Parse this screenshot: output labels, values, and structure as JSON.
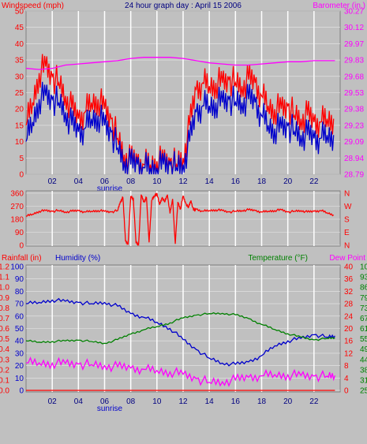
{
  "header": {
    "windspeed_label": "Windspeed (mph)",
    "title": "24 hour graph day : April 15 2006",
    "barometer_label": "Barometer (in.)"
  },
  "mid_header": {
    "rainfall_label": "Rainfall (in)",
    "humidity_label": "Humidity (%)",
    "temperature_label": "Temperature (°F)",
    "dewpoint_label": "Dew Point"
  },
  "sunrise_label": "sunrise",
  "colors": {
    "windspeed": "#ff0000",
    "wind_gust": "#0000cc",
    "barometer": "#ff00ff",
    "wind_direction": "#ff0000",
    "humidity": "#0000cc",
    "temperature": "#008000",
    "dewpoint": "#ff00ff",
    "rainfall": "#ff0000",
    "plot_bg": "#c0c0c0",
    "grid": "#ffffff"
  },
  "chart_data": [
    {
      "type": "line",
      "x_ticks": [
        "02",
        "04",
        "06",
        "08",
        "10",
        "12",
        "14",
        "16",
        "18",
        "20",
        "22"
      ],
      "left_axis": {
        "label": "Windspeed (mph)",
        "ylim": [
          0,
          50
        ],
        "ticks": [
          "0",
          "5",
          "10",
          "15",
          "20",
          "25",
          "30",
          "35",
          "40",
          "45",
          "50"
        ]
      },
      "right_axis": {
        "label": "Barometer (in.)",
        "ylim": [
          28.79,
          30.27
        ],
        "ticks": [
          "28.79",
          "28.94",
          "29.09",
          "29.23",
          "29.38",
          "29.53",
          "29.68",
          "29.83",
          "29.97",
          "30.12",
          "30.27"
        ]
      },
      "series": [
        {
          "name": "Windspeed",
          "axis": "left",
          "color": "#ff0000",
          "x": [
            0,
            0.5,
            1,
            1.5,
            2,
            2.5,
            3,
            3.5,
            4,
            4.5,
            5,
            5.5,
            6,
            6.5,
            7,
            7.5,
            8,
            8.5,
            9,
            9.5,
            10,
            10.5,
            11,
            11.5,
            12,
            12.5,
            13,
            13.5,
            14,
            14.5,
            15,
            15.5,
            16,
            16.5,
            17,
            17.5,
            18,
            18.5,
            19,
            19.5,
            20,
            20.5,
            21,
            21.5,
            22,
            22.5,
            23,
            23.5
          ],
          "y": [
            15,
            22,
            31,
            33,
            30,
            28,
            24,
            20,
            17,
            19,
            22,
            23,
            20,
            17,
            11,
            6,
            4,
            4,
            3,
            3,
            4,
            4,
            4,
            3,
            5,
            15,
            26,
            28,
            27,
            28,
            28,
            29,
            28,
            27,
            29,
            28,
            24,
            21,
            20,
            20,
            21,
            18,
            17,
            18,
            16,
            16,
            17,
            17
          ]
        },
        {
          "name": "Wind Gust",
          "axis": "left",
          "color": "#0000cc",
          "x": [
            0,
            0.5,
            1,
            1.5,
            2,
            2.5,
            3,
            3.5,
            4,
            4.5,
            5,
            5.5,
            6,
            6.5,
            7,
            7.5,
            8,
            8.5,
            9,
            9.5,
            10,
            10.5,
            11,
            11.5,
            12,
            12.5,
            13,
            13.5,
            14,
            14.5,
            15,
            15.5,
            16,
            16.5,
            17,
            17.5,
            18,
            18.5,
            19,
            19.5,
            20,
            20.5,
            21,
            21.5,
            22,
            22.5,
            23,
            23.5
          ],
          "y": [
            10,
            16,
            23,
            24,
            23,
            22,
            19,
            15,
            13,
            14,
            17,
            18,
            15,
            13,
            8,
            4,
            3,
            3,
            2,
            2,
            2,
            3,
            3,
            2,
            3,
            10,
            19,
            21,
            21,
            22,
            22,
            23,
            22,
            22,
            23,
            22,
            18,
            15,
            14,
            14,
            15,
            13,
            12,
            12,
            11,
            11,
            12,
            12
          ]
        },
        {
          "name": "Barometer",
          "axis": "right",
          "color": "#ff00ff",
          "x": [
            0,
            1,
            2,
            3,
            4,
            5,
            6,
            7,
            8,
            9,
            10,
            11,
            12,
            13,
            14,
            15,
            16,
            17,
            18,
            19,
            20,
            21,
            22,
            23,
            23.6
          ],
          "y": [
            29.75,
            29.74,
            29.75,
            29.78,
            29.79,
            29.8,
            29.81,
            29.82,
            29.84,
            29.85,
            29.85,
            29.85,
            29.84,
            29.82,
            29.8,
            29.79,
            29.78,
            29.78,
            29.79,
            29.8,
            29.81,
            29.81,
            29.82,
            29.82,
            29.82
          ]
        }
      ]
    },
    {
      "type": "line",
      "x_ticks": [
        "02",
        "04",
        "06",
        "08",
        "10",
        "12",
        "14",
        "16",
        "18",
        "20",
        "22"
      ],
      "left_axis": {
        "ylim": [
          0,
          360
        ],
        "ticks": [
          "0",
          "90",
          "180",
          "270",
          "360"
        ]
      },
      "right_axis": {
        "ticks": [
          "N",
          "E",
          "S",
          "W",
          "N"
        ]
      },
      "series": [
        {
          "name": "Wind Direction",
          "color": "#ff0000",
          "x": [
            0,
            0.5,
            1,
            1.5,
            2,
            2.5,
            3,
            3.5,
            4,
            4.5,
            5,
            5.5,
            6,
            6.5,
            7,
            7.2,
            7.4,
            7.6,
            7.8,
            8,
            8.2,
            8.4,
            8.6,
            8.8,
            9,
            9.2,
            9.4,
            9.6,
            9.8,
            10,
            10.2,
            10.4,
            10.6,
            10.8,
            11,
            11.2,
            11.4,
            11.6,
            11.8,
            12,
            12.2,
            12.4,
            12.6,
            12.8,
            13,
            13.5,
            14,
            14.5,
            15,
            15.5,
            16,
            16.5,
            17,
            17.5,
            18,
            18.5,
            19,
            19.5,
            20,
            20.5,
            21,
            21.5,
            22,
            22.5,
            23,
            23.5
          ],
          "y": [
            200,
            215,
            235,
            240,
            235,
            240,
            230,
            235,
            240,
            230,
            235,
            240,
            235,
            230,
            240,
            300,
            330,
            30,
            10,
            340,
            320,
            20,
            5,
            350,
            300,
            330,
            20,
            310,
            340,
            360,
            280,
            330,
            300,
            350,
            220,
            320,
            10,
            300,
            250,
            340,
            290,
            260,
            310,
            240,
            250,
            235,
            240,
            245,
            240,
            230,
            235,
            240,
            245,
            240,
            230,
            235,
            240,
            245,
            230,
            235,
            240,
            230,
            235,
            240,
            225,
            210
          ]
        }
      ]
    },
    {
      "type": "line",
      "x_ticks": [
        "02",
        "04",
        "06",
        "08",
        "10",
        "12",
        "14",
        "16",
        "18",
        "20",
        "22"
      ],
      "axes": [
        {
          "label": "Rainfall (in)",
          "side": "left",
          "ticks": [
            "0.0",
            "0.1",
            "0.2",
            "0.3",
            "0.4",
            "0.5",
            "0.6",
            "0.7",
            "0.8",
            "0.9",
            "1.0",
            "1.1",
            "1.2"
          ]
        },
        {
          "label": "Humidity (%)",
          "side": "left",
          "ylim": [
            0,
            100
          ],
          "ticks": [
            "0",
            "10",
            "20",
            "30",
            "40",
            "50",
            "60",
            "70",
            "80",
            "90",
            "100"
          ]
        },
        {
          "label": "Temperature (°F)",
          "side": "right",
          "ylim": [
            0,
            40
          ],
          "ticks": [
            "0",
            "4",
            "8",
            "12",
            "16",
            "20",
            "24",
            "28",
            "32",
            "36",
            "40"
          ]
        },
        {
          "label": "Dew Point",
          "side": "right",
          "ticks": [
            "25",
            "31",
            "38",
            "44",
            "49",
            "55",
            "61",
            "67",
            "73",
            "79",
            "86",
            "93",
            "100"
          ]
        }
      ],
      "series": [
        {
          "name": "Humidity",
          "axis": "Humidity (%)",
          "color": "#0000cc",
          "x": [
            0,
            1,
            2,
            3,
            4,
            5,
            6,
            7,
            8,
            9,
            10,
            11,
            12,
            13,
            14,
            15,
            16,
            17,
            18,
            19,
            20,
            21,
            22,
            23,
            23.6
          ],
          "y": [
            70,
            71,
            73,
            72,
            71,
            70,
            71,
            68,
            62,
            59,
            55,
            50,
            41,
            33,
            26,
            22,
            21,
            23,
            28,
            36,
            40,
            42,
            45,
            43,
            44
          ]
        },
        {
          "name": "Temperature",
          "axis": "Temperature (°F)",
          "color": "#008000",
          "x": [
            0,
            1,
            2,
            3,
            4,
            5,
            6,
            7,
            8,
            9,
            10,
            11,
            12,
            13,
            14,
            15,
            16,
            17,
            18,
            19,
            20,
            21,
            22,
            23,
            23.6
          ],
          "y": [
            16,
            15.6,
            15.8,
            16,
            16.2,
            15.8,
            15.2,
            16.4,
            18.2,
            19.6,
            20.6,
            21.8,
            23.4,
            24.3,
            24.8,
            24.9,
            24.4,
            23.2,
            21.3,
            19.7,
            18.3,
            17.2,
            16.3,
            16.8,
            17
          ]
        },
        {
          "name": "Dew Point",
          "axis": "Temperature (°F)",
          "color": "#ff00ff",
          "x": [
            0,
            1,
            2,
            3,
            4,
            5,
            6,
            7,
            8,
            9,
            10,
            11,
            12,
            13,
            14,
            15,
            16,
            17,
            18,
            19,
            20,
            21,
            22,
            23,
            23.6
          ],
          "y": [
            8.9,
            8.9,
            8.8,
            8.7,
            8.5,
            8.3,
            8.0,
            7.6,
            7.2,
            6.8,
            6.4,
            6.0,
            5.2,
            3.8,
            2.6,
            2.8,
            3.4,
            4.2,
            4.7,
            5.1,
            5.0,
            4.8,
            4.6,
            4.6,
            4.8
          ]
        },
        {
          "name": "Rainfall",
          "axis": "Rainfall (in)",
          "color": "#ff0000",
          "x": [
            0,
            23.6
          ],
          "y": [
            0,
            0
          ]
        }
      ]
    }
  ]
}
